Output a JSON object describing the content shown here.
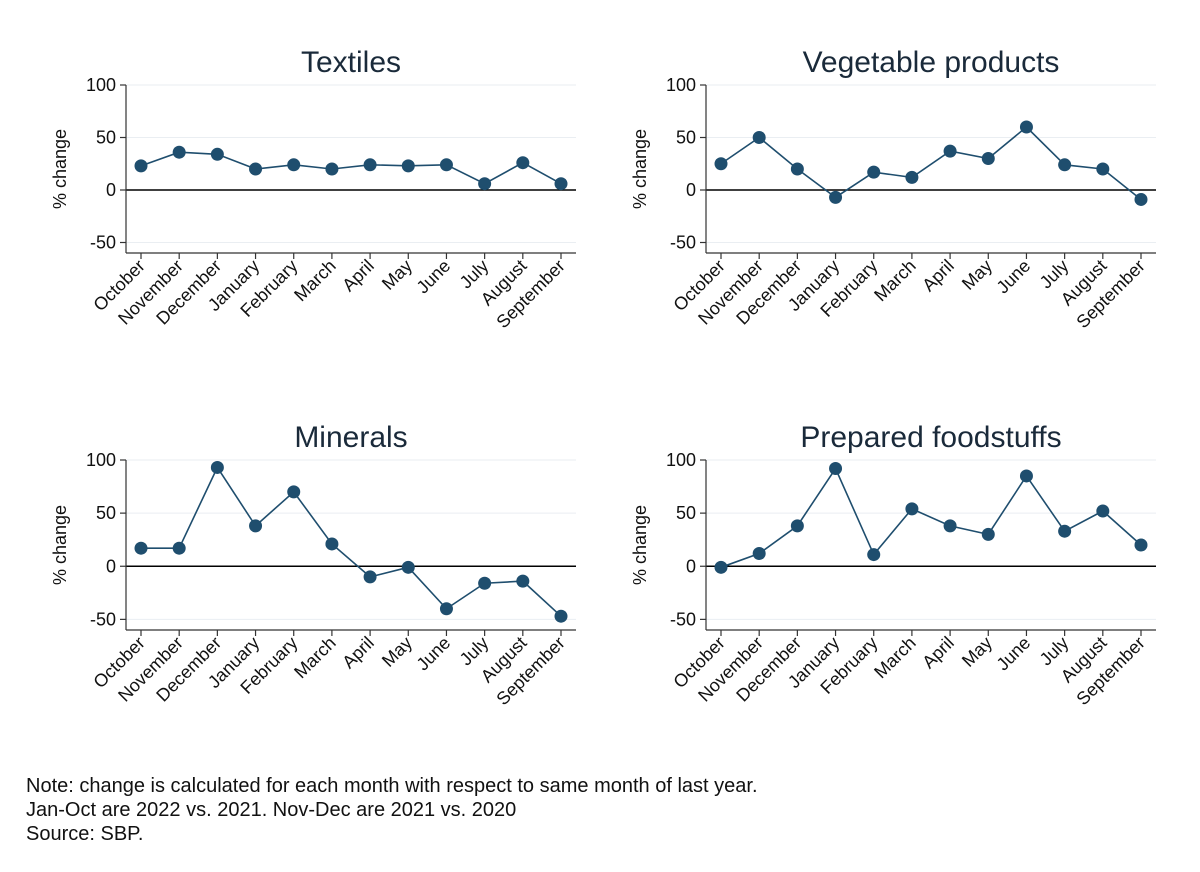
{
  "chart_data": [
    {
      "type": "line",
      "title": "Textiles",
      "ylabel": "% change",
      "xlabel": "",
      "categories": [
        "October",
        "November",
        "December",
        "January",
        "February",
        "March",
        "April",
        "May",
        "June",
        "July",
        "August",
        "September"
      ],
      "values": [
        23,
        36,
        34,
        20,
        24,
        20,
        24,
        23,
        24,
        6,
        26,
        6
      ],
      "ylim": [
        -60,
        100
      ],
      "yticks": [
        100,
        50,
        0,
        -50
      ],
      "reference_line": 0,
      "grid": true,
      "legend": "none"
    },
    {
      "type": "line",
      "title": "Vegetable products",
      "ylabel": "% change",
      "xlabel": "",
      "categories": [
        "October",
        "November",
        "December",
        "January",
        "February",
        "March",
        "April",
        "May",
        "June",
        "July",
        "August",
        "September"
      ],
      "values": [
        25,
        50,
        20,
        -7,
        17,
        12,
        37,
        30,
        60,
        24,
        20,
        -9
      ],
      "ylim": [
        -60,
        100
      ],
      "yticks": [
        100,
        50,
        0,
        -50
      ],
      "reference_line": 0,
      "grid": true,
      "legend": "none"
    },
    {
      "type": "line",
      "title": "Minerals",
      "ylabel": "% change",
      "xlabel": "",
      "categories": [
        "October",
        "November",
        "December",
        "January",
        "February",
        "March",
        "April",
        "May",
        "June",
        "July",
        "August",
        "September"
      ],
      "values": [
        17,
        17,
        93,
        38,
        70,
        21,
        -10,
        -1,
        -40,
        -16,
        -14,
        -47
      ],
      "ylim": [
        -60,
        100
      ],
      "yticks": [
        100,
        50,
        0,
        -50
      ],
      "reference_line": 0,
      "grid": true,
      "legend": "none"
    },
    {
      "type": "line",
      "title": "Prepared foodstuffs",
      "ylabel": "% change",
      "xlabel": "",
      "categories": [
        "October",
        "November",
        "December",
        "January",
        "February",
        "March",
        "April",
        "May",
        "June",
        "July",
        "August",
        "September"
      ],
      "values": [
        -1,
        12,
        38,
        92,
        11,
        54,
        38,
        30,
        85,
        33,
        52,
        20
      ],
      "ylim": [
        -60,
        100
      ],
      "yticks": [
        100,
        50,
        0,
        -50
      ],
      "reference_line": 0,
      "grid": true,
      "legend": "none"
    }
  ],
  "notes": [
    "Note: change is calculated for each month with respect to same month of last year.",
    "Jan-Oct are 2022 vs. 2021. Nov-Dec are 2021 vs. 2020",
    "Source: SBP."
  ],
  "colors": {
    "series": "#1f4e6e",
    "axis": "#333333",
    "grid": "#eaeef2",
    "zero_line": "#000000",
    "text": "#111111"
  }
}
